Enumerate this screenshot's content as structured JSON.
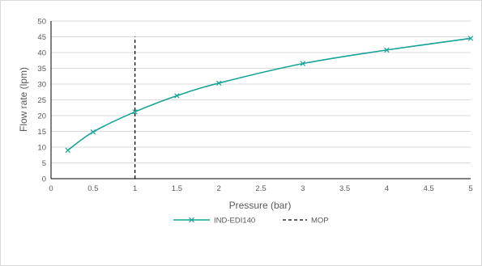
{
  "chart_data": {
    "type": "line",
    "title": "",
    "xlabel": "Pressure (bar)",
    "ylabel": "Flow rate (lpm)",
    "xlim": [
      0,
      5
    ],
    "ylim": [
      0,
      50
    ],
    "x_ticks": [
      "0",
      "0.5",
      "1",
      "1.5",
      "2",
      "2.5",
      "3",
      "3.5",
      "4",
      "4.5",
      "5"
    ],
    "y_ticks": [
      "0",
      "5",
      "10",
      "15",
      "20",
      "25",
      "30",
      "35",
      "40",
      "45",
      "50"
    ],
    "grid": "horizontal",
    "legend_position": "bottom",
    "series": [
      {
        "name": "IND-EDI140",
        "color": "#17A398",
        "marker": "x",
        "style": "solid",
        "x": [
          0.2,
          0.5,
          1.0,
          1.5,
          2.0,
          3.0,
          4.0,
          5.0
        ],
        "y": [
          9.0,
          14.8,
          21.2,
          26.3,
          30.3,
          36.5,
          40.8,
          44.5
        ]
      },
      {
        "name": "MOP",
        "color": "#000000",
        "style": "dashed",
        "x": [
          1.0,
          1.0
        ],
        "y": [
          0,
          45
        ]
      }
    ]
  }
}
